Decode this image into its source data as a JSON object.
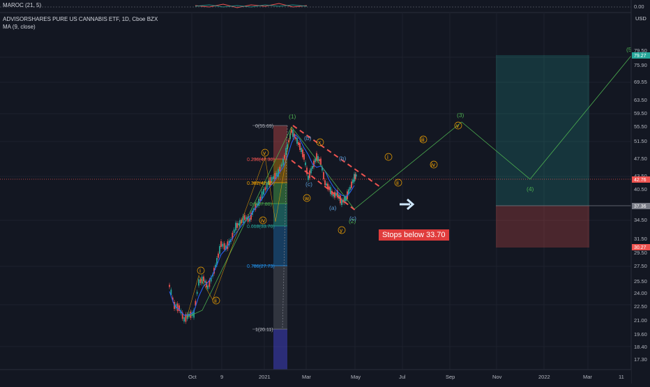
{
  "indicator_pane": {
    "label": "MAROC (21, 5)",
    "axis_ticks": [
      "0.00",
      "0.00"
    ]
  },
  "header": {
    "title": "ADVISORSHARES PURE US CANNABIS ETF, 1D, Cboe BZX",
    "ma_label": "MA (9, close)",
    "currency": "USD"
  },
  "price_axis": {
    "ticks": [
      "79.50",
      "75.90",
      "69.55",
      "63.50",
      "59.50",
      "55.50",
      "51.50",
      "47.50",
      "43.50",
      "40.50",
      "34.50",
      "31.50",
      "29.50",
      "27.50",
      "25.50",
      "24.00",
      "22.50",
      "21.00",
      "19.60",
      "18.40",
      "17.30"
    ],
    "tags": [
      {
        "text": "79.27",
        "color": "#26a69a"
      },
      {
        "text": "42.76",
        "color": "#ef5350"
      },
      {
        "text": "37.36",
        "color": "#787b86"
      },
      {
        "text": "30.27",
        "color": "#ef5350"
      }
    ]
  },
  "time_axis": {
    "ticks": [
      "Oct",
      "9",
      "2021",
      "Mar",
      "Mar",
      "May",
      "Jul",
      "Sep",
      "Nov",
      "2022",
      "Mar",
      "11"
    ]
  },
  "fib_levels": [
    "0(55.69)",
    "0.236(47.30)",
    "0.382(42.05)",
    "0.5(37.80)",
    "0.618(33.70)",
    "0.786(27.73)",
    "1(20.11)"
  ],
  "wave_labels": {
    "primary": [
      "(1)",
      "(2)",
      "(3)",
      "(4)",
      "(5"
    ],
    "orange": [
      "i",
      "ii",
      "iii",
      "iv",
      "v",
      "i",
      "ii",
      "iii",
      "iv",
      "v",
      "w",
      "x",
      "y"
    ],
    "blue": [
      "(a)",
      "(b)",
      "(c)",
      "(a)",
      "(b)",
      "(c)",
      "(a)",
      "(b)",
      "(c)"
    ]
  },
  "annotation": {
    "text": "Stops below 33.70"
  },
  "colors": {
    "background": "#131722",
    "grid": "#1e222d",
    "up": "#26a69a",
    "down": "#ef5350",
    "ma": "#2962ff",
    "fib_orange": "#f7a600",
    "wave_green": "#4caf50",
    "arrow": "#cfe8ff"
  }
}
